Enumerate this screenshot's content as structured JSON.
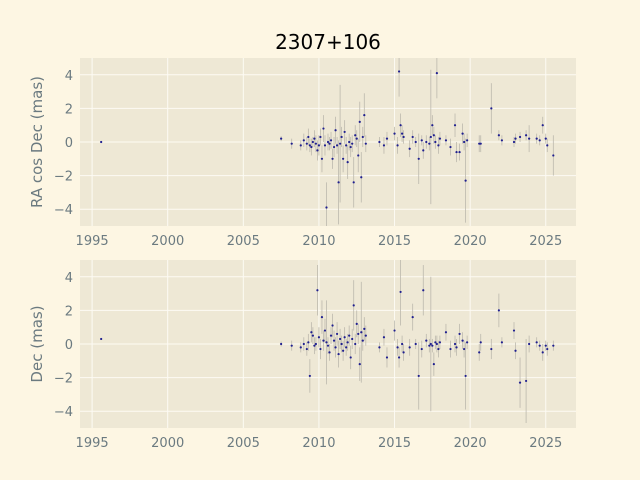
{
  "title": "2307+106",
  "colors": {
    "figure_bg": "#fdf6e3",
    "axes_bg": "#eee8d5",
    "grid": "#fdfbf4",
    "points": "#1f1f8f",
    "errorbars": "#bcb8ad",
    "text": "#6b7a80"
  },
  "chart_data": [
    {
      "type": "scatter",
      "ylabel": "RA cos Dec (mas)",
      "xlabel": "",
      "xlim": [
        1994.2,
        2027.0
      ],
      "ylim": [
        -5.0,
        5.0
      ],
      "xticks": [
        1995,
        2000,
        2005,
        2010,
        2015,
        2020,
        2025
      ],
      "yticks": [
        -4,
        -2,
        0,
        2,
        4
      ],
      "grid": true,
      "points": [
        {
          "x": 1995.6,
          "y": 0.0,
          "err": 0.05
        },
        {
          "x": 2007.5,
          "y": 0.2,
          "err": 0.15
        },
        {
          "x": 2008.2,
          "y": -0.1,
          "err": 0.3
        },
        {
          "x": 2008.8,
          "y": -0.2,
          "err": 0.3
        },
        {
          "x": 2009.0,
          "y": 0.1,
          "err": 0.4
        },
        {
          "x": 2009.2,
          "y": -0.1,
          "err": 0.4
        },
        {
          "x": 2009.3,
          "y": 0.3,
          "err": 0.5
        },
        {
          "x": 2009.4,
          "y": -0.2,
          "err": 0.4
        },
        {
          "x": 2009.5,
          "y": -0.3,
          "err": 0.5
        },
        {
          "x": 2009.6,
          "y": 0.0,
          "err": 0.3
        },
        {
          "x": 2009.7,
          "y": 0.2,
          "err": 0.5
        },
        {
          "x": 2009.8,
          "y": -0.1,
          "err": 0.5
        },
        {
          "x": 2009.9,
          "y": -0.5,
          "err": 0.6
        },
        {
          "x": 2010.0,
          "y": -0.2,
          "err": 0.6
        },
        {
          "x": 2010.1,
          "y": 0.3,
          "err": 0.5
        },
        {
          "x": 2010.2,
          "y": -1.0,
          "err": 0.8
        },
        {
          "x": 2010.3,
          "y": 0.8,
          "err": 0.8
        },
        {
          "x": 2010.4,
          "y": -0.2,
          "err": 0.6
        },
        {
          "x": 2010.5,
          "y": -3.9,
          "err": 1.5
        },
        {
          "x": 2010.6,
          "y": 0.0,
          "err": 0.5
        },
        {
          "x": 2010.7,
          "y": -0.1,
          "err": 0.4
        },
        {
          "x": 2010.8,
          "y": 0.1,
          "err": 0.5
        },
        {
          "x": 2010.9,
          "y": -1.0,
          "err": 0.6
        },
        {
          "x": 2011.0,
          "y": -0.3,
          "err": 0.6
        },
        {
          "x": 2011.1,
          "y": 0.7,
          "err": 0.8
        },
        {
          "x": 2011.2,
          "y": -0.2,
          "err": 0.5
        },
        {
          "x": 2011.3,
          "y": -2.4,
          "err": 2.5
        },
        {
          "x": 2011.4,
          "y": -0.1,
          "err": 3.5
        },
        {
          "x": 2011.5,
          "y": 0.3,
          "err": 0.6
        },
        {
          "x": 2011.6,
          "y": -1.0,
          "err": 0.8
        },
        {
          "x": 2011.7,
          "y": 0.6,
          "err": 0.7
        },
        {
          "x": 2011.8,
          "y": -0.2,
          "err": 0.5
        },
        {
          "x": 2011.9,
          "y": -1.2,
          "err": 1.0
        },
        {
          "x": 2012.0,
          "y": 0.0,
          "err": 0.5
        },
        {
          "x": 2012.1,
          "y": -0.3,
          "err": 0.6
        },
        {
          "x": 2012.2,
          "y": -0.1,
          "err": 0.5
        },
        {
          "x": 2012.3,
          "y": -2.4,
          "err": 1.5
        },
        {
          "x": 2012.4,
          "y": 0.4,
          "err": 0.6
        },
        {
          "x": 2012.5,
          "y": 0.2,
          "err": 0.5
        },
        {
          "x": 2012.6,
          "y": -0.8,
          "err": 1.0
        },
        {
          "x": 2012.7,
          "y": 1.2,
          "err": 1.2
        },
        {
          "x": 2012.8,
          "y": -2.1,
          "err": 1.5
        },
        {
          "x": 2012.9,
          "y": 0.3,
          "err": 0.6
        },
        {
          "x": 2013.0,
          "y": 1.6,
          "err": 1.3
        },
        {
          "x": 2013.1,
          "y": -0.1,
          "err": 0.5
        },
        {
          "x": 2014.0,
          "y": 0.0,
          "err": 0.3
        },
        {
          "x": 2014.3,
          "y": -0.2,
          "err": 0.5
        },
        {
          "x": 2014.5,
          "y": 0.2,
          "err": 0.4
        },
        {
          "x": 2015.0,
          "y": 0.5,
          "err": 0.4
        },
        {
          "x": 2015.2,
          "y": -0.2,
          "err": 0.5
        },
        {
          "x": 2015.3,
          "y": 4.2,
          "err": 1.5
        },
        {
          "x": 2015.4,
          "y": 1.0,
          "err": 0.7
        },
        {
          "x": 2015.5,
          "y": 0.5,
          "err": 0.5
        },
        {
          "x": 2015.6,
          "y": 0.3,
          "err": 0.4
        },
        {
          "x": 2016.0,
          "y": -0.4,
          "err": 0.5
        },
        {
          "x": 2016.2,
          "y": 0.3,
          "err": 0.4
        },
        {
          "x": 2016.4,
          "y": 0.0,
          "err": 0.3
        },
        {
          "x": 2016.6,
          "y": -1.0,
          "err": 1.5
        },
        {
          "x": 2016.8,
          "y": 0.1,
          "err": 0.3
        },
        {
          "x": 2016.9,
          "y": -0.5,
          "err": 0.5
        },
        {
          "x": 2017.1,
          "y": 0.0,
          "err": 0.4
        },
        {
          "x": 2017.3,
          "y": -0.1,
          "err": 0.4
        },
        {
          "x": 2017.4,
          "y": 0.3,
          "err": 4.0
        },
        {
          "x": 2017.5,
          "y": 1.0,
          "err": 0.6
        },
        {
          "x": 2017.6,
          "y": 0.4,
          "err": 0.5
        },
        {
          "x": 2017.7,
          "y": 0.0,
          "err": 0.4
        },
        {
          "x": 2017.8,
          "y": 4.1,
          "err": 1.5
        },
        {
          "x": 2017.9,
          "y": -0.2,
          "err": 0.5
        },
        {
          "x": 2018.0,
          "y": 0.2,
          "err": 0.4
        },
        {
          "x": 2018.4,
          "y": 0.1,
          "err": 0.3
        },
        {
          "x": 2018.7,
          "y": -0.3,
          "err": 0.5
        },
        {
          "x": 2019.0,
          "y": 1.0,
          "err": 0.7
        },
        {
          "x": 2019.1,
          "y": -0.6,
          "err": 0.6
        },
        {
          "x": 2019.3,
          "y": -0.6,
          "err": 0.5
        },
        {
          "x": 2019.5,
          "y": 0.5,
          "err": 0.6
        },
        {
          "x": 2019.6,
          "y": 0.0,
          "err": 0.5
        },
        {
          "x": 2019.7,
          "y": -2.3,
          "err": 2.5
        },
        {
          "x": 2019.8,
          "y": 0.1,
          "err": 0.4
        },
        {
          "x": 2020.6,
          "y": -0.1,
          "err": 0.5
        },
        {
          "x": 2020.7,
          "y": -0.1,
          "err": 0.5
        },
        {
          "x": 2021.4,
          "y": 2.0,
          "err": 1.5
        },
        {
          "x": 2021.9,
          "y": 0.4,
          "err": 0.3
        },
        {
          "x": 2022.1,
          "y": 0.1,
          "err": 0.3
        },
        {
          "x": 2022.9,
          "y": 0.0,
          "err": 0.3
        },
        {
          "x": 2023.0,
          "y": 0.2,
          "err": 0.3
        },
        {
          "x": 2023.3,
          "y": 0.3,
          "err": 0.3
        },
        {
          "x": 2023.7,
          "y": 0.4,
          "err": 0.3
        },
        {
          "x": 2023.9,
          "y": 0.2,
          "err": 0.8
        },
        {
          "x": 2024.4,
          "y": 0.2,
          "err": 0.3
        },
        {
          "x": 2024.6,
          "y": 0.1,
          "err": 0.3
        },
        {
          "x": 2024.8,
          "y": 1.0,
          "err": 0.5
        },
        {
          "x": 2025.0,
          "y": 0.2,
          "err": 0.3
        },
        {
          "x": 2025.1,
          "y": -0.2,
          "err": 0.4
        },
        {
          "x": 2025.5,
          "y": -0.8,
          "err": 1.2
        }
      ]
    },
    {
      "type": "scatter",
      "ylabel": "Dec (mas)",
      "xlabel": "",
      "xlim": [
        1994.2,
        2027.0
      ],
      "ylim": [
        -5.0,
        5.0
      ],
      "xticks": [
        1995,
        2000,
        2005,
        2010,
        2015,
        2020,
        2025
      ],
      "yticks": [
        -4,
        -2,
        0,
        2,
        4
      ],
      "grid": true,
      "points": [
        {
          "x": 1995.6,
          "y": 0.3,
          "err": 0.05
        },
        {
          "x": 2007.5,
          "y": 0.0,
          "err": 0.15
        },
        {
          "x": 2008.2,
          "y": -0.1,
          "err": 0.3
        },
        {
          "x": 2008.8,
          "y": -0.2,
          "err": 0.3
        },
        {
          "x": 2009.0,
          "y": 0.0,
          "err": 0.4
        },
        {
          "x": 2009.2,
          "y": -0.3,
          "err": 0.4
        },
        {
          "x": 2009.3,
          "y": 0.1,
          "err": 0.5
        },
        {
          "x": 2009.4,
          "y": -1.9,
          "err": 1.0
        },
        {
          "x": 2009.5,
          "y": 0.7,
          "err": 0.6
        },
        {
          "x": 2009.6,
          "y": 0.5,
          "err": 0.5
        },
        {
          "x": 2009.7,
          "y": -0.1,
          "err": 0.5
        },
        {
          "x": 2009.8,
          "y": 0.0,
          "err": 0.4
        },
        {
          "x": 2009.9,
          "y": 3.2,
          "err": 1.5
        },
        {
          "x": 2010.0,
          "y": 0.4,
          "err": 0.6
        },
        {
          "x": 2010.1,
          "y": -0.3,
          "err": 0.6
        },
        {
          "x": 2010.2,
          "y": 1.6,
          "err": 1.0
        },
        {
          "x": 2010.3,
          "y": 0.2,
          "err": 0.6
        },
        {
          "x": 2010.4,
          "y": 0.8,
          "err": 0.7
        },
        {
          "x": 2010.5,
          "y": 0.1,
          "err": 2.5
        },
        {
          "x": 2010.6,
          "y": -0.1,
          "err": 0.5
        },
        {
          "x": 2010.7,
          "y": -0.5,
          "err": 0.5
        },
        {
          "x": 2010.8,
          "y": 0.5,
          "err": 0.5
        },
        {
          "x": 2010.9,
          "y": 1.1,
          "err": 0.7
        },
        {
          "x": 2011.0,
          "y": 0.2,
          "err": 0.6
        },
        {
          "x": 2011.1,
          "y": -0.2,
          "err": 0.6
        },
        {
          "x": 2011.2,
          "y": 0.6,
          "err": 0.7
        },
        {
          "x": 2011.3,
          "y": -0.6,
          "err": 0.8
        },
        {
          "x": 2011.4,
          "y": 0.3,
          "err": 0.6
        },
        {
          "x": 2011.5,
          "y": 0.0,
          "err": 0.5
        },
        {
          "x": 2011.6,
          "y": -0.4,
          "err": 0.6
        },
        {
          "x": 2011.7,
          "y": 0.4,
          "err": 0.6
        },
        {
          "x": 2011.8,
          "y": -0.2,
          "err": 0.5
        },
        {
          "x": 2011.9,
          "y": 0.1,
          "err": 0.5
        },
        {
          "x": 2012.0,
          "y": 0.5,
          "err": 0.6
        },
        {
          "x": 2012.1,
          "y": -0.8,
          "err": 0.7
        },
        {
          "x": 2012.2,
          "y": 0.3,
          "err": 0.6
        },
        {
          "x": 2012.3,
          "y": 2.3,
          "err": 1.5
        },
        {
          "x": 2012.4,
          "y": 0.0,
          "err": 0.6
        },
        {
          "x": 2012.5,
          "y": 1.2,
          "err": 0.8
        },
        {
          "x": 2012.6,
          "y": 0.6,
          "err": 0.6
        },
        {
          "x": 2012.7,
          "y": -1.2,
          "err": 1.0
        },
        {
          "x": 2012.8,
          "y": 0.7,
          "err": 3.0
        },
        {
          "x": 2012.9,
          "y": 0.2,
          "err": 0.6
        },
        {
          "x": 2013.0,
          "y": 0.9,
          "err": 0.7
        },
        {
          "x": 2013.1,
          "y": 0.5,
          "err": 0.6
        },
        {
          "x": 2014.0,
          "y": -0.2,
          "err": 0.3
        },
        {
          "x": 2014.3,
          "y": 0.4,
          "err": 0.5
        },
        {
          "x": 2014.5,
          "y": -0.8,
          "err": 0.6
        },
        {
          "x": 2015.0,
          "y": 0.8,
          "err": 0.6
        },
        {
          "x": 2015.2,
          "y": -0.2,
          "err": 0.5
        },
        {
          "x": 2015.3,
          "y": -0.8,
          "err": 0.6
        },
        {
          "x": 2015.4,
          "y": 3.1,
          "err": 2.0
        },
        {
          "x": 2015.5,
          "y": 0.0,
          "err": 0.5
        },
        {
          "x": 2015.6,
          "y": -0.5,
          "err": 0.5
        },
        {
          "x": 2016.0,
          "y": -0.2,
          "err": 0.5
        },
        {
          "x": 2016.2,
          "y": 1.6,
          "err": 0.8
        },
        {
          "x": 2016.4,
          "y": 0.0,
          "err": 0.3
        },
        {
          "x": 2016.6,
          "y": -1.9,
          "err": 2.0
        },
        {
          "x": 2016.8,
          "y": -0.3,
          "err": 0.5
        },
        {
          "x": 2016.9,
          "y": 3.2,
          "err": 1.5
        },
        {
          "x": 2017.1,
          "y": 0.2,
          "err": 0.4
        },
        {
          "x": 2017.3,
          "y": -0.1,
          "err": 0.4
        },
        {
          "x": 2017.4,
          "y": 0.0,
          "err": 4.0
        },
        {
          "x": 2017.5,
          "y": -0.1,
          "err": 0.4
        },
        {
          "x": 2017.6,
          "y": -1.2,
          "err": 0.7
        },
        {
          "x": 2017.7,
          "y": 0.1,
          "err": 0.4
        },
        {
          "x": 2017.8,
          "y": 0.0,
          "err": 0.5
        },
        {
          "x": 2017.9,
          "y": -0.3,
          "err": 0.5
        },
        {
          "x": 2018.0,
          "y": 0.1,
          "err": 0.4
        },
        {
          "x": 2018.4,
          "y": 0.7,
          "err": 0.5
        },
        {
          "x": 2018.7,
          "y": -0.3,
          "err": 0.5
        },
        {
          "x": 2019.0,
          "y": 0.0,
          "err": 0.5
        },
        {
          "x": 2019.1,
          "y": -0.2,
          "err": 0.5
        },
        {
          "x": 2019.3,
          "y": 0.6,
          "err": 0.6
        },
        {
          "x": 2019.5,
          "y": 0.2,
          "err": 0.5
        },
        {
          "x": 2019.6,
          "y": -0.3,
          "err": 0.5
        },
        {
          "x": 2019.7,
          "y": -1.9,
          "err": 2.0
        },
        {
          "x": 2019.8,
          "y": 0.1,
          "err": 0.4
        },
        {
          "x": 2020.6,
          "y": -0.5,
          "err": 0.5
        },
        {
          "x": 2020.7,
          "y": 0.1,
          "err": 0.5
        },
        {
          "x": 2021.4,
          "y": -0.3,
          "err": 0.6
        },
        {
          "x": 2021.9,
          "y": 2.0,
          "err": 1.0
        },
        {
          "x": 2022.1,
          "y": 0.1,
          "err": 0.3
        },
        {
          "x": 2022.9,
          "y": 0.8,
          "err": 0.5
        },
        {
          "x": 2023.0,
          "y": -0.4,
          "err": 0.5
        },
        {
          "x": 2023.3,
          "y": -2.3,
          "err": 1.5
        },
        {
          "x": 2023.7,
          "y": -2.2,
          "err": 2.5
        },
        {
          "x": 2023.9,
          "y": 0.0,
          "err": 0.5
        },
        {
          "x": 2024.4,
          "y": 0.1,
          "err": 0.3
        },
        {
          "x": 2024.6,
          "y": -0.1,
          "err": 0.3
        },
        {
          "x": 2024.8,
          "y": -0.5,
          "err": 0.5
        },
        {
          "x": 2025.0,
          "y": -0.1,
          "err": 0.3
        },
        {
          "x": 2025.1,
          "y": -0.3,
          "err": 0.4
        },
        {
          "x": 2025.5,
          "y": -0.1,
          "err": 0.3
        }
      ]
    }
  ]
}
